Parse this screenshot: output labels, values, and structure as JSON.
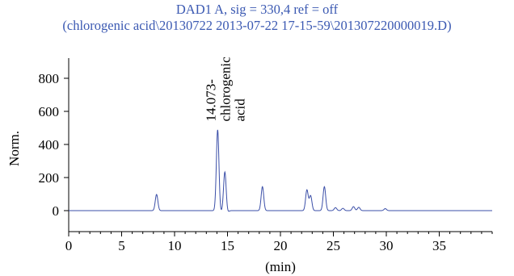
{
  "chart_data": {
    "type": "line",
    "title": "DAD1 A, sig = 330,4 ref = off",
    "subtitle": "(chlorogenic acid\\20130722 2013-07-22 17-15-59\\201307220000019.D)",
    "xlabel": "(min)",
    "ylabel": "Norm.",
    "xlim": [
      0,
      40
    ],
    "ylim": [
      -70,
      980
    ],
    "xticks": [
      0,
      5,
      10,
      15,
      20,
      25,
      30,
      35
    ],
    "yticks": [
      0,
      200,
      400,
      600,
      800
    ],
    "grid": false,
    "line_color": "#3b4fa8",
    "title_color": "#3b59b2",
    "annotations": [
      {
        "x": 14.073,
        "y": 490,
        "lines": [
          "14.073-",
          "chlorogenic",
          "acid"
        ]
      }
    ],
    "series": [
      {
        "baseline": 0,
        "peaks": [
          {
            "x": 8.3,
            "y": 98
          },
          {
            "x": 14.07,
            "y": 490
          },
          {
            "x": 14.75,
            "y": 235
          },
          {
            "x": 18.3,
            "y": 145
          },
          {
            "x": 22.5,
            "y": 125
          },
          {
            "x": 22.85,
            "y": 90
          },
          {
            "x": 24.15,
            "y": 145
          },
          {
            "x": 25.2,
            "y": 18
          },
          {
            "x": 25.9,
            "y": 14
          },
          {
            "x": 26.9,
            "y": 24
          },
          {
            "x": 27.4,
            "y": 20
          },
          {
            "x": 29.9,
            "y": 12
          }
        ]
      }
    ]
  }
}
